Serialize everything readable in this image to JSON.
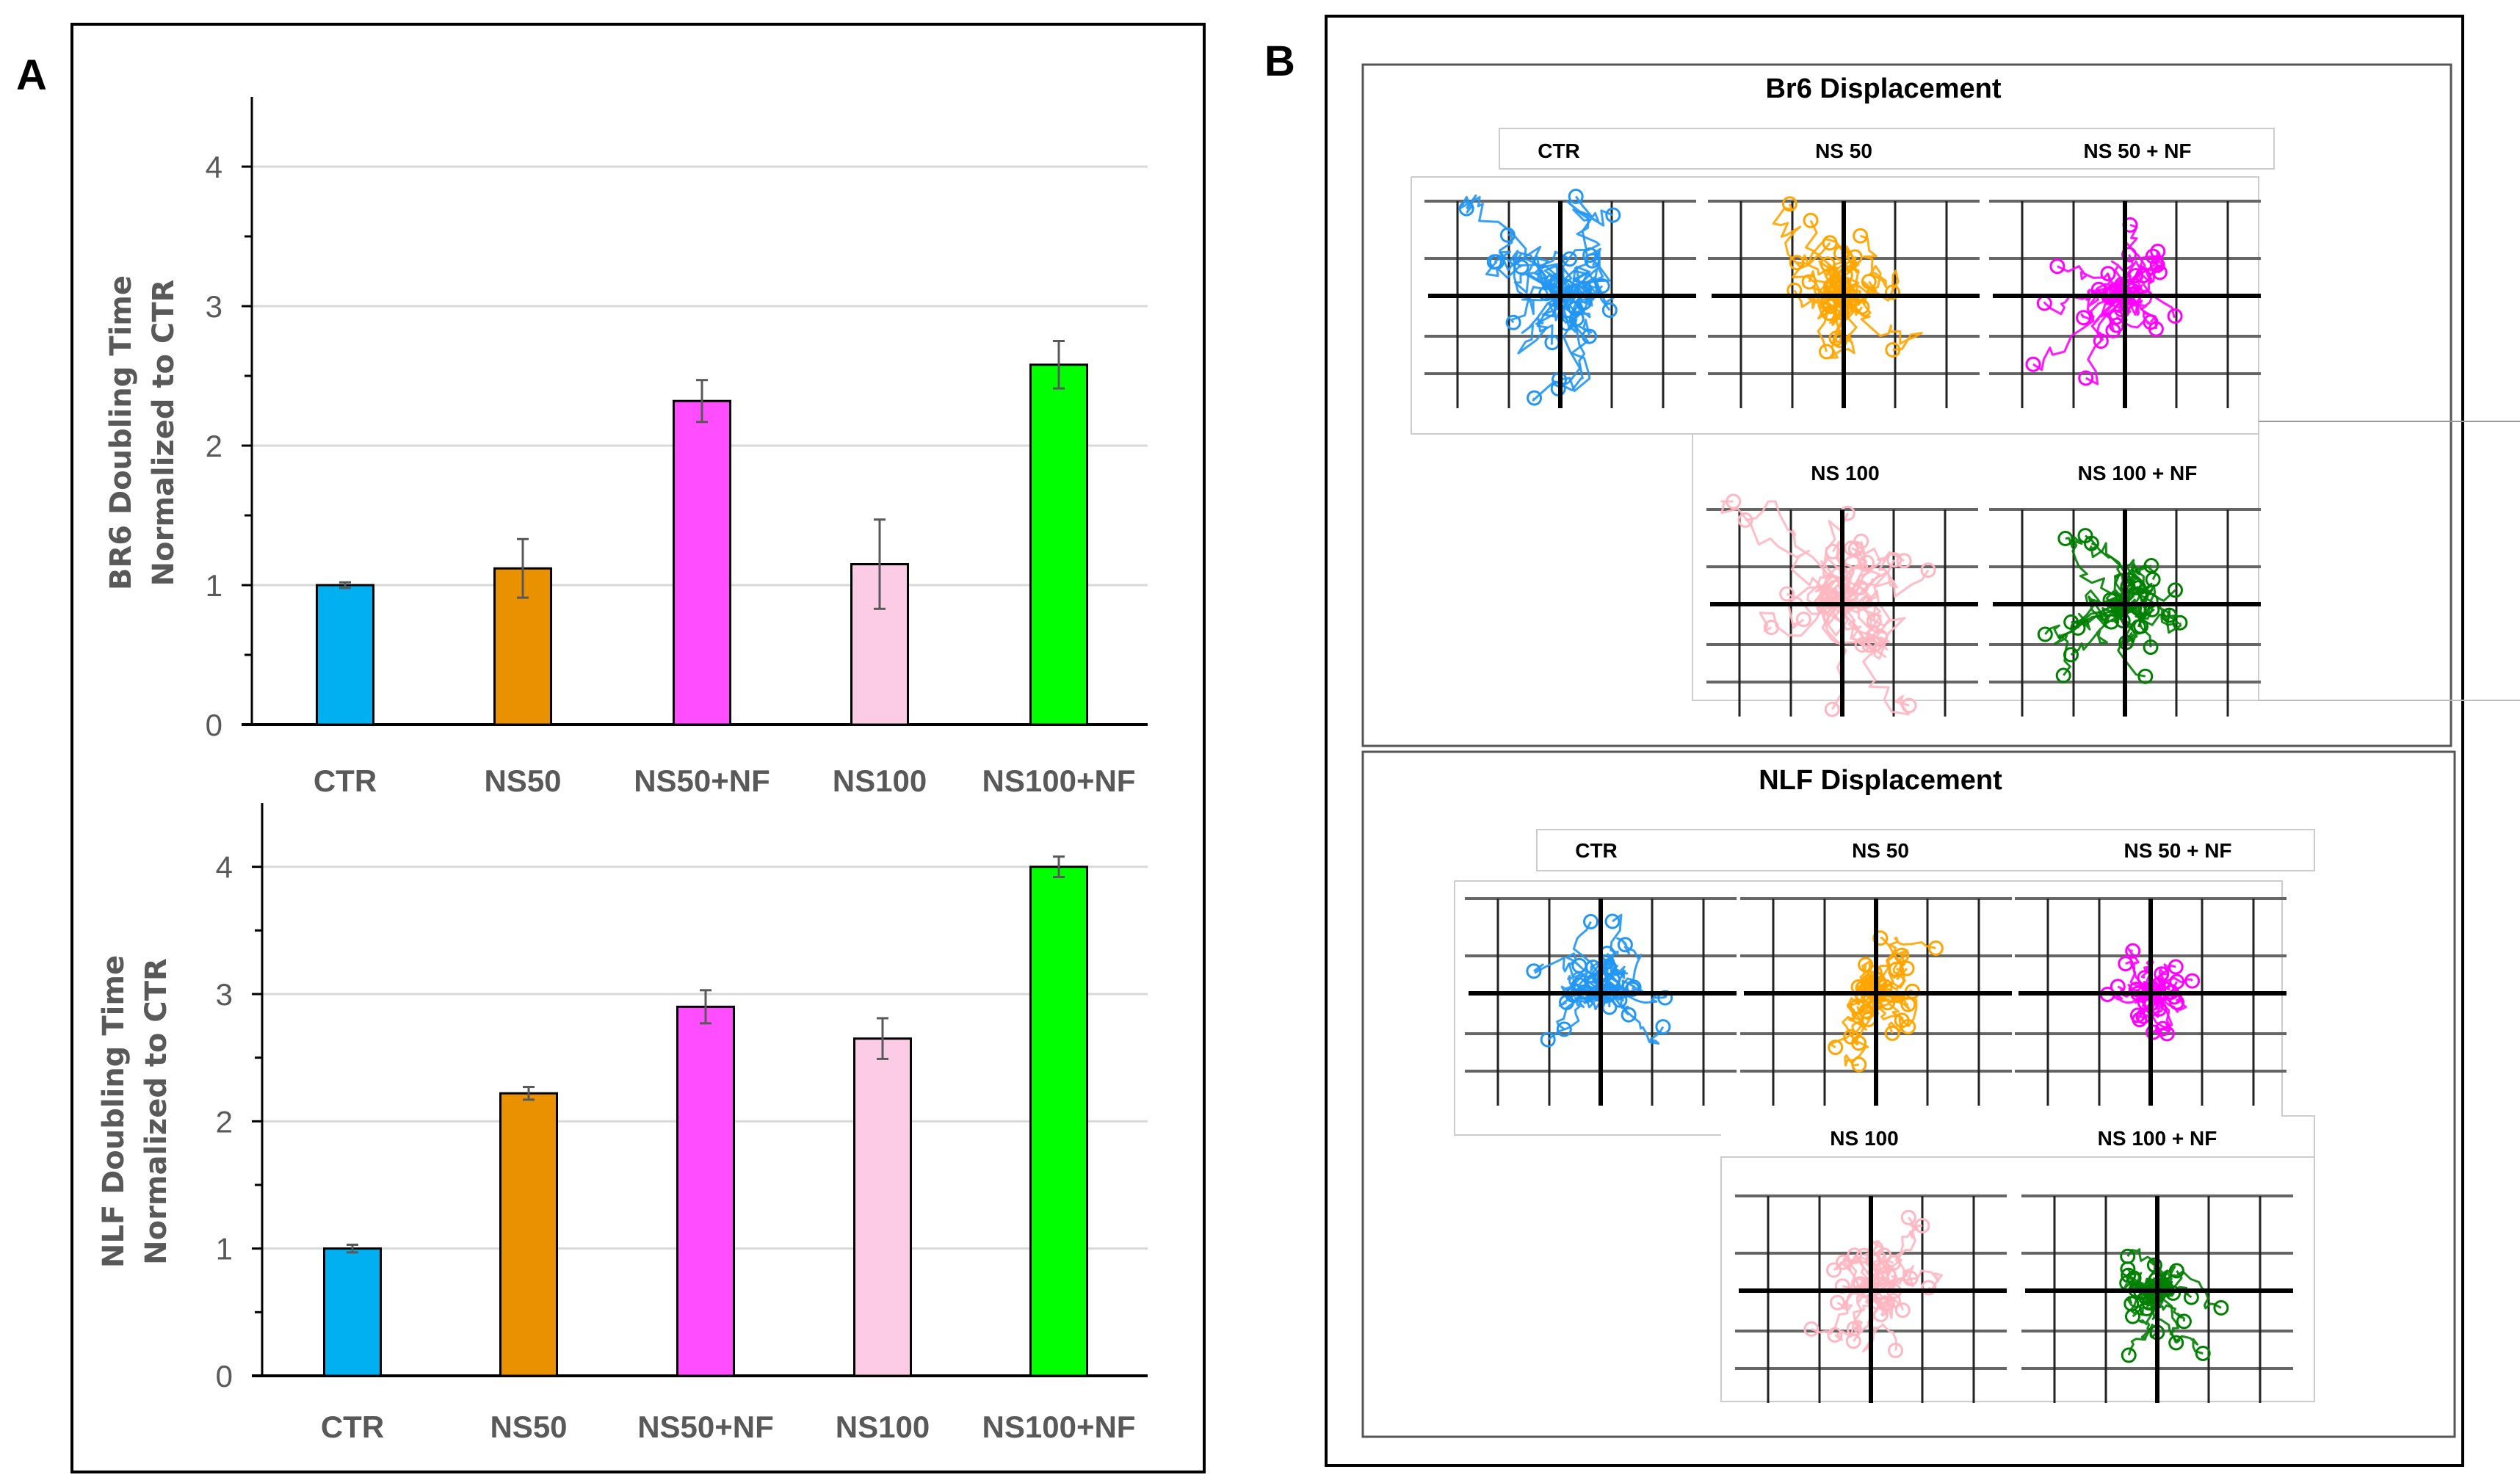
{
  "panel_labels": {
    "a": "A",
    "b": "B"
  },
  "chart_data": [
    {
      "type": "bar",
      "title": "",
      "ylabel": [
        "BR6  Doubling Time",
        "Normalized to CTR"
      ],
      "xlabel": "",
      "categories": [
        "CTR",
        "NS50",
        "NS50+NF",
        "NS100",
        "NS100+NF"
      ],
      "values": [
        1.0,
        1.12,
        2.32,
        1.15,
        2.58
      ],
      "errors": [
        0.02,
        0.21,
        0.15,
        0.32,
        0.17
      ],
      "colors": [
        "#00B0F0",
        "#E99100",
        "#FF4DFF",
        "#FCCCE6",
        "#00FF00"
      ],
      "ylim": [
        0,
        4.5
      ],
      "yticks": [
        0,
        1,
        2,
        3,
        4
      ],
      "grid": true
    },
    {
      "type": "bar",
      "title": "",
      "ylabel": [
        "NLF Doubling Time",
        "Normalized to CTR"
      ],
      "xlabel": "",
      "categories": [
        "CTR",
        "NS50",
        "NS50+NF",
        "NS100",
        "NS100+NF"
      ],
      "values": [
        1.0,
        2.22,
        2.9,
        2.65,
        4.0
      ],
      "errors": [
        0.03,
        0.05,
        0.13,
        0.16,
        0.08
      ],
      "colors": [
        "#00B0F0",
        "#E99100",
        "#FF4DFF",
        "#FCCCE6",
        "#00FF00"
      ],
      "ylim": [
        0,
        4.5
      ],
      "yticks": [
        0,
        1,
        2,
        3,
        4
      ],
      "grid": true
    },
    {
      "type": "line",
      "title": "Br6 Displacement",
      "panels": [
        {
          "label": "CTR",
          "color": "#2196F3"
        },
        {
          "label": "NS 50",
          "color": "#FFA500"
        },
        {
          "label": "NS 50 + NF",
          "color": "#FF00FF"
        },
        {
          "label": "NS 100",
          "color": "#FFB6C1"
        },
        {
          "label": "NS 100 + NF",
          "color": "#008000"
        }
      ]
    },
    {
      "type": "line",
      "title": "NLF Displacement",
      "panels": [
        {
          "label": "CTR",
          "color": "#2196F3"
        },
        {
          "label": "NS 50",
          "color": "#FFA500"
        },
        {
          "label": "NS 50 + NF",
          "color": "#FF00FF"
        },
        {
          "label": "NS 100",
          "color": "#FFB6C1"
        },
        {
          "label": "NS 100 + NF",
          "color": "#008000"
        }
      ]
    }
  ]
}
